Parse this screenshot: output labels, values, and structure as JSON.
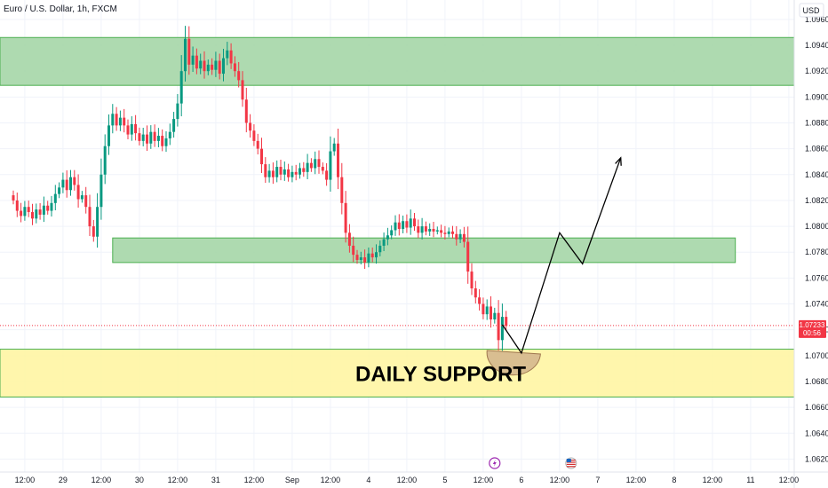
{
  "header": {
    "symbol_title": "Euro / U.S. Dollar, 1h, FXCM",
    "currency": "USD"
  },
  "colors": {
    "up": "#089981",
    "down": "#f23645",
    "zone_green_fill": "#a5d6a7",
    "zone_green_border": "#4caf50",
    "zone_yellow_fill": "#fff59d",
    "grid": "#f0f3fa",
    "badge": "#f23645",
    "bowl": "#d2b48c"
  },
  "last_price": {
    "value": "1.07233",
    "countdown": "00:56"
  },
  "chart_data": {
    "type": "candlestick",
    "ylim": [
      1.061,
      1.0975
    ],
    "y_ticks": [
      "1.09600",
      "1.09400",
      "1.09200",
      "1.09000",
      "1.08800",
      "1.08600",
      "1.08400",
      "1.08200",
      "1.08000",
      "1.07800",
      "1.07600",
      "1.07400",
      "1.07200",
      "1.07000",
      "1.06800",
      "1.06600",
      "1.06400",
      "1.06200"
    ],
    "x_ticks": [
      {
        "label": "12:00",
        "i": 3
      },
      {
        "label": "29",
        "i": 13
      },
      {
        "label": "12:00",
        "i": 23
      },
      {
        "label": "30",
        "i": 33
      },
      {
        "label": "12:00",
        "i": 43
      },
      {
        "label": "31",
        "i": 53
      },
      {
        "label": "12:00",
        "i": 63
      },
      {
        "label": "Sep",
        "i": 73
      },
      {
        "label": "12:00",
        "i": 83
      },
      {
        "label": "4",
        "i": 93
      },
      {
        "label": "12:00",
        "i": 103
      },
      {
        "label": "5",
        "i": 113
      },
      {
        "label": "12:00",
        "i": 123
      },
      {
        "label": "6",
        "i": 133
      },
      {
        "label": "12:00",
        "i": 143
      },
      {
        "label": "7",
        "i": 153
      },
      {
        "label": "12:00",
        "i": 163
      },
      {
        "label": "8",
        "i": 173
      },
      {
        "label": "12:00",
        "i": 183
      },
      {
        "label": "11",
        "i": 193
      },
      {
        "label": "12:00",
        "i": 203
      }
    ],
    "closes": [
      1.082,
      1.0812,
      1.0808,
      1.0815,
      1.0811,
      1.0806,
      1.0813,
      1.0809,
      1.0816,
      1.0812,
      1.0818,
      1.0825,
      1.083,
      1.0836,
      1.0828,
      1.0838,
      1.0832,
      1.0821,
      1.0824,
      1.0815,
      1.08,
      1.0792,
      1.0815,
      1.084,
      1.0862,
      1.0878,
      1.0887,
      1.0878,
      1.0884,
      1.0878,
      1.0871,
      1.0879,
      1.0872,
      1.0866,
      1.0871,
      1.0864,
      1.0873,
      1.0866,
      1.087,
      1.0862,
      1.0868,
      1.0873,
      1.0883,
      1.0895,
      1.092,
      1.0945,
      1.0925,
      1.0932,
      1.0922,
      1.0928,
      1.092,
      1.0925,
      1.0921,
      1.0928,
      1.0918,
      1.093,
      1.0936,
      1.0926,
      1.092,
      1.0913,
      1.0898,
      1.088,
      1.0874,
      1.0866,
      1.086,
      1.0848,
      1.0838,
      1.0843,
      1.0838,
      1.0846,
      1.084,
      1.0844,
      1.0838,
      1.0842,
      1.084,
      1.0845,
      1.0842,
      1.0849,
      1.0845,
      1.0852,
      1.0846,
      1.0843,
      1.0836,
      1.0858,
      1.0864,
      1.0838,
      1.0818,
      1.0795,
      1.0785,
      1.0778,
      1.0774,
      1.0776,
      1.0772,
      1.0779,
      1.0776,
      1.078,
      1.0785,
      1.079,
      1.0793,
      1.0797,
      1.0803,
      1.0798,
      1.0804,
      1.0799,
      1.0806,
      1.08,
      1.0795,
      1.08,
      1.0796,
      1.0798,
      1.0796,
      1.0797,
      1.0795,
      1.0794,
      1.0796,
      1.0794,
      1.079,
      1.0794,
      1.0788,
      1.0765,
      1.0752,
      1.0745,
      1.074,
      1.0732,
      1.0738,
      1.0728,
      1.0733,
      1.0712,
      1.073,
      1.0723
    ],
    "zones": [
      {
        "kind": "supply",
        "y_top": 1.0946,
        "y_bottom": 1.0909,
        "start_i": -4,
        "end_i": 209
      },
      {
        "kind": "support",
        "y_top": 1.0791,
        "y_bottom": 1.0772,
        "start_i": 26,
        "end_i": 189
      },
      {
        "kind": "daily-support",
        "y_top": 1.0705,
        "y_bottom": 1.0668,
        "start_i": -4,
        "end_i": 209,
        "label": "DAILY SUPPORT"
      }
    ],
    "projection": [
      {
        "i": 128,
        "y": 1.0724
      },
      {
        "i": 133,
        "y": 1.0702
      },
      {
        "i": 143,
        "y": 1.0795
      },
      {
        "i": 149,
        "y": 1.0771
      },
      {
        "i": 159,
        "y": 1.0853
      }
    ],
    "bowl": {
      "i_start": 124,
      "i_end": 138,
      "y": 1.0704
    },
    "event_markers": [
      {
        "icon": "lightning-icon",
        "i": 126
      },
      {
        "icon": "us-flag-icon",
        "i": 146
      }
    ]
  }
}
